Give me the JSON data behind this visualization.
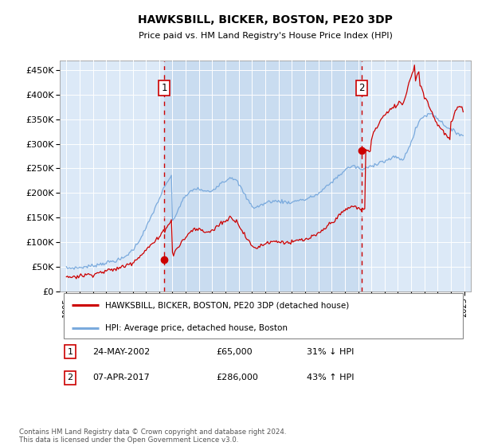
{
  "title": "HAWKSBILL, BICKER, BOSTON, PE20 3DP",
  "subtitle": "Price paid vs. HM Land Registry's House Price Index (HPI)",
  "plot_bg_color": "#dce9f7",
  "highlight_color": "#c8d8ef",
  "red_line_color": "#cc0000",
  "blue_line_color": "#7aaadd",
  "marker1_date_num": 2002.38,
  "marker2_date_num": 2017.27,
  "marker1_value": 65000,
  "marker2_value": 286000,
  "marker1_label": "1",
  "marker2_label": "2",
  "marker1_date_str": "24-MAY-2002",
  "marker2_date_str": "07-APR-2017",
  "marker1_pct": "31% ↓ HPI",
  "marker2_pct": "43% ↑ HPI",
  "ylim_min": 0,
  "ylim_max": 470000,
  "xlim_min": 1994.5,
  "xlim_max": 2025.5,
  "ytick_values": [
    0,
    50000,
    100000,
    150000,
    200000,
    250000,
    300000,
    350000,
    400000,
    450000
  ],
  "ytick_labels": [
    "£0",
    "£50K",
    "£100K",
    "£150K",
    "£200K",
    "£250K",
    "£300K",
    "£350K",
    "£400K",
    "£450K"
  ],
  "xtick_years": [
    1995,
    1996,
    1997,
    1998,
    1999,
    2000,
    2001,
    2002,
    2003,
    2004,
    2005,
    2006,
    2007,
    2008,
    2009,
    2010,
    2011,
    2012,
    2013,
    2014,
    2015,
    2016,
    2017,
    2018,
    2019,
    2020,
    2021,
    2022,
    2023,
    2024,
    2025
  ],
  "legend_red_label": "HAWKSBILL, BICKER, BOSTON, PE20 3DP (detached house)",
  "legend_blue_label": "HPI: Average price, detached house, Boston",
  "footer_text": "Contains HM Land Registry data © Crown copyright and database right 2024.\nThis data is licensed under the Open Government Licence v3.0.",
  "hpi_x": [
    1995.0,
    1995.08,
    1995.17,
    1995.25,
    1995.33,
    1995.42,
    1995.5,
    1995.58,
    1995.67,
    1995.75,
    1995.83,
    1995.92,
    1996.0,
    1996.08,
    1996.17,
    1996.25,
    1996.33,
    1996.42,
    1996.5,
    1996.58,
    1996.67,
    1996.75,
    1996.83,
    1996.92,
    1997.0,
    1997.08,
    1997.17,
    1997.25,
    1997.33,
    1997.42,
    1997.5,
    1997.58,
    1997.67,
    1997.75,
    1997.83,
    1997.92,
    1998.0,
    1998.08,
    1998.17,
    1998.25,
    1998.33,
    1998.42,
    1998.5,
    1998.58,
    1998.67,
    1998.75,
    1998.83,
    1998.92,
    1999.0,
    1999.08,
    1999.17,
    1999.25,
    1999.33,
    1999.42,
    1999.5,
    1999.58,
    1999.67,
    1999.75,
    1999.83,
    1999.92,
    2000.0,
    2000.08,
    2000.17,
    2000.25,
    2000.33,
    2000.42,
    2000.5,
    2000.58,
    2000.67,
    2000.75,
    2000.83,
    2000.92,
    2001.0,
    2001.08,
    2001.17,
    2001.25,
    2001.33,
    2001.42,
    2001.5,
    2001.58,
    2001.67,
    2001.75,
    2001.83,
    2001.92,
    2002.0,
    2002.08,
    2002.17,
    2002.25,
    2002.33,
    2002.42,
    2002.5,
    2002.58,
    2002.67,
    2002.75,
    2002.83,
    2002.92,
    2003.0,
    2003.08,
    2003.17,
    2003.25,
    2003.33,
    2003.42,
    2003.5,
    2003.58,
    2003.67,
    2003.75,
    2003.83,
    2003.92,
    2004.0,
    2004.08,
    2004.17,
    2004.25,
    2004.33,
    2004.42,
    2004.5,
    2004.58,
    2004.67,
    2004.75,
    2004.83,
    2004.92,
    2005.0,
    2005.08,
    2005.17,
    2005.25,
    2005.33,
    2005.42,
    2005.5,
    2005.58,
    2005.67,
    2005.75,
    2005.83,
    2005.92,
    2006.0,
    2006.08,
    2006.17,
    2006.25,
    2006.33,
    2006.42,
    2006.5,
    2006.58,
    2006.67,
    2006.75,
    2006.83,
    2006.92,
    2007.0,
    2007.08,
    2007.17,
    2007.25,
    2007.33,
    2007.42,
    2007.5,
    2007.58,
    2007.67,
    2007.75,
    2007.83,
    2007.92,
    2008.0,
    2008.08,
    2008.17,
    2008.25,
    2008.33,
    2008.42,
    2008.5,
    2008.58,
    2008.67,
    2008.75,
    2008.83,
    2008.92,
    2009.0,
    2009.08,
    2009.17,
    2009.25,
    2009.33,
    2009.42,
    2009.5,
    2009.58,
    2009.67,
    2009.75,
    2009.83,
    2009.92,
    2010.0,
    2010.08,
    2010.17,
    2010.25,
    2010.33,
    2010.42,
    2010.5,
    2010.58,
    2010.67,
    2010.75,
    2010.83,
    2010.92,
    2011.0,
    2011.08,
    2011.17,
    2011.25,
    2011.33,
    2011.42,
    2011.5,
    2011.58,
    2011.67,
    2011.75,
    2011.83,
    2011.92,
    2012.0,
    2012.08,
    2012.17,
    2012.25,
    2012.33,
    2012.42,
    2012.5,
    2012.58,
    2012.67,
    2012.75,
    2012.83,
    2012.92,
    2013.0,
    2013.08,
    2013.17,
    2013.25,
    2013.33,
    2013.42,
    2013.5,
    2013.58,
    2013.67,
    2013.75,
    2013.83,
    2013.92,
    2014.0,
    2014.08,
    2014.17,
    2014.25,
    2014.33,
    2014.42,
    2014.5,
    2014.58,
    2014.67,
    2014.75,
    2014.83,
    2014.92,
    2015.0,
    2015.08,
    2015.17,
    2015.25,
    2015.33,
    2015.42,
    2015.5,
    2015.58,
    2015.67,
    2015.75,
    2015.83,
    2015.92,
    2016.0,
    2016.08,
    2016.17,
    2016.25,
    2016.33,
    2016.42,
    2016.5,
    2016.58,
    2016.67,
    2016.75,
    2016.83,
    2016.92,
    2017.0,
    2017.08,
    2017.17,
    2017.25,
    2017.33,
    2017.42,
    2017.5,
    2017.58,
    2017.67,
    2017.75,
    2017.83,
    2017.92,
    2018.0,
    2018.08,
    2018.17,
    2018.25,
    2018.33,
    2018.42,
    2018.5,
    2018.58,
    2018.67,
    2018.75,
    2018.83,
    2018.92,
    2019.0,
    2019.08,
    2019.17,
    2019.25,
    2019.33,
    2019.42,
    2019.5,
    2019.58,
    2019.67,
    2019.75,
    2019.83,
    2019.92,
    2020.0,
    2020.08,
    2020.17,
    2020.25,
    2020.33,
    2020.42,
    2020.5,
    2020.58,
    2020.67,
    2020.75,
    2020.83,
    2020.92,
    2021.0,
    2021.08,
    2021.17,
    2021.25,
    2021.33,
    2021.42,
    2021.5,
    2021.58,
    2021.67,
    2021.75,
    2021.83,
    2021.92,
    2022.0,
    2022.08,
    2022.17,
    2022.25,
    2022.33,
    2022.42,
    2022.5,
    2022.58,
    2022.67,
    2022.75,
    2022.83,
    2022.92,
    2023.0,
    2023.08,
    2023.17,
    2023.25,
    2023.33,
    2023.42,
    2023.5,
    2023.58,
    2023.67,
    2023.75,
    2023.83,
    2023.92,
    2024.0,
    2024.08,
    2024.17,
    2024.25,
    2024.33,
    2024.42,
    2024.5,
    2024.58,
    2024.67,
    2024.75,
    2024.83,
    2024.92
  ],
  "hpi_y": [
    47000,
    47200,
    47100,
    47300,
    47500,
    47400,
    47600,
    47800,
    47700,
    47900,
    48000,
    47800,
    48200,
    48500,
    48800,
    49100,
    49400,
    49700,
    50000,
    50300,
    50600,
    50900,
    51200,
    51500,
    52000,
    52500,
    53000,
    53500,
    54000,
    54500,
    55000,
    55500,
    56000,
    56500,
    57000,
    57500,
    58000,
    58500,
    59000,
    59500,
    60000,
    60500,
    61000,
    61500,
    62000,
    62500,
    63000,
    63500,
    64000,
    65000,
    66000,
    67000,
    68000,
    70000,
    72000,
    74000,
    76000,
    78000,
    80000,
    82000,
    84000,
    87000,
    90000,
    93000,
    96000,
    100000,
    104000,
    108000,
    112000,
    116000,
    120000,
    124000,
    128000,
    133000,
    138000,
    143000,
    148000,
    153000,
    158000,
    163000,
    168000,
    173000,
    178000,
    183000,
    188000,
    193000,
    198000,
    203000,
    208000,
    212000,
    216000,
    220000,
    224000,
    228000,
    232000,
    236000,
    140000,
    145000,
    150000,
    155000,
    160000,
    165000,
    170000,
    175000,
    180000,
    185000,
    188000,
    190000,
    192000,
    195000,
    198000,
    200000,
    202000,
    204000,
    206000,
    207000,
    208000,
    208000,
    208000,
    208000,
    208000,
    207000,
    206000,
    205000,
    204000,
    203000,
    203000,
    203000,
    203000,
    203000,
    203000,
    204000,
    205000,
    207000,
    209000,
    211000,
    213000,
    215000,
    217000,
    219000,
    221000,
    222000,
    223000,
    224000,
    225000,
    226000,
    228000,
    230000,
    232000,
    232000,
    231000,
    230000,
    228000,
    226000,
    224000,
    221000,
    218000,
    214000,
    210000,
    206000,
    202000,
    198000,
    194000,
    190000,
    186000,
    183000,
    180000,
    177000,
    174000,
    172000,
    170000,
    170000,
    171000,
    172000,
    173000,
    174000,
    175000,
    176000,
    177000,
    178000,
    179000,
    180000,
    181000,
    182000,
    183000,
    183000,
    183000,
    183000,
    183000,
    183000,
    183000,
    183000,
    183000,
    183000,
    183000,
    183000,
    182000,
    182000,
    182000,
    181000,
    181000,
    181000,
    181000,
    181000,
    181000,
    181000,
    182000,
    183000,
    184000,
    185000,
    186000,
    186000,
    186000,
    186000,
    186000,
    186000,
    186000,
    187000,
    188000,
    189000,
    190000,
    191000,
    192000,
    193000,
    194000,
    195000,
    196000,
    197000,
    198000,
    200000,
    202000,
    204000,
    206000,
    208000,
    210000,
    212000,
    214000,
    216000,
    218000,
    220000,
    222000,
    224000,
    226000,
    228000,
    230000,
    232000,
    234000,
    236000,
    238000,
    240000,
    242000,
    244000,
    246000,
    248000,
    250000,
    251000,
    252000,
    253000,
    254000,
    254000,
    254000,
    254000,
    253000,
    252000,
    251000,
    250000,
    249000,
    248000,
    247000,
    248000,
    249000,
    250000,
    251000,
    252000,
    253000,
    254000,
    255000,
    256000,
    257000,
    258000,
    259000,
    260000,
    261000,
    262000,
    263000,
    264000,
    264000,
    264000,
    264000,
    265000,
    266000,
    267000,
    268000,
    269000,
    270000,
    271000,
    272000,
    272000,
    272000,
    272000,
    272000,
    271000,
    270000,
    269000,
    265000,
    268000,
    273000,
    278000,
    284000,
    290000,
    294000,
    298000,
    302000,
    308000,
    315000,
    322000,
    328000,
    334000,
    339000,
    344000,
    348000,
    351000,
    354000,
    356000,
    356000,
    357000,
    358000,
    359000,
    360000,
    361000,
    362000,
    361000,
    360000,
    358000,
    356000,
    354000,
    351000,
    349000,
    347000,
    345000,
    343000,
    341000,
    339000,
    337000,
    335000,
    333000,
    331000,
    329000,
    328000,
    327000,
    326000,
    325000,
    324000,
    323000,
    322000,
    321000,
    320000,
    319000,
    318000,
    318000
  ],
  "price_x": [
    1995.0,
    1995.08,
    1995.17,
    1995.25,
    1995.33,
    1995.42,
    1995.5,
    1995.58,
    1995.67,
    1995.75,
    1995.83,
    1995.92,
    1996.0,
    1996.08,
    1996.17,
    1996.25,
    1996.33,
    1996.42,
    1996.5,
    1996.58,
    1996.67,
    1996.75,
    1996.83,
    1996.92,
    1997.0,
    1997.08,
    1997.17,
    1997.25,
    1997.33,
    1997.42,
    1997.5,
    1997.58,
    1997.67,
    1997.75,
    1997.83,
    1997.92,
    1998.0,
    1998.08,
    1998.17,
    1998.25,
    1998.33,
    1998.42,
    1998.5,
    1998.58,
    1998.67,
    1998.75,
    1998.83,
    1998.92,
    1999.0,
    1999.08,
    1999.17,
    1999.25,
    1999.33,
    1999.42,
    1999.5,
    1999.58,
    1999.67,
    1999.75,
    1999.83,
    1999.92,
    2000.0,
    2000.08,
    2000.17,
    2000.25,
    2000.33,
    2000.42,
    2000.5,
    2000.58,
    2000.67,
    2000.75,
    2000.83,
    2000.92,
    2001.0,
    2001.08,
    2001.17,
    2001.25,
    2001.33,
    2001.42,
    2001.5,
    2001.58,
    2001.67,
    2001.75,
    2001.83,
    2001.92,
    2002.0,
    2002.08,
    2002.17,
    2002.25,
    2002.33,
    2002.42,
    2002.5,
    2002.58,
    2002.67,
    2002.75,
    2002.83,
    2002.92,
    2003.0,
    2003.08,
    2003.17,
    2003.25,
    2003.33,
    2003.42,
    2003.5,
    2003.58,
    2003.67,
    2003.75,
    2003.83,
    2003.92,
    2004.0,
    2004.08,
    2004.17,
    2004.25,
    2004.33,
    2004.42,
    2004.5,
    2004.58,
    2004.67,
    2004.75,
    2004.83,
    2004.92,
    2005.0,
    2005.08,
    2005.17,
    2005.25,
    2005.33,
    2005.42,
    2005.5,
    2005.58,
    2005.67,
    2005.75,
    2005.83,
    2005.92,
    2006.0,
    2006.08,
    2006.17,
    2006.25,
    2006.33,
    2006.42,
    2006.5,
    2006.58,
    2006.67,
    2006.75,
    2006.83,
    2006.92,
    2007.0,
    2007.08,
    2007.17,
    2007.25,
    2007.33,
    2007.42,
    2007.5,
    2007.58,
    2007.67,
    2007.75,
    2007.83,
    2007.92,
    2008.0,
    2008.08,
    2008.17,
    2008.25,
    2008.33,
    2008.42,
    2008.5,
    2008.58,
    2008.67,
    2008.75,
    2008.83,
    2008.92,
    2009.0,
    2009.08,
    2009.17,
    2009.25,
    2009.33,
    2009.42,
    2009.5,
    2009.58,
    2009.67,
    2009.75,
    2009.83,
    2009.92,
    2010.0,
    2010.08,
    2010.17,
    2010.25,
    2010.33,
    2010.42,
    2010.5,
    2010.58,
    2010.67,
    2010.75,
    2010.83,
    2010.92,
    2011.0,
    2011.08,
    2011.17,
    2011.25,
    2011.33,
    2011.42,
    2011.5,
    2011.58,
    2011.67,
    2011.75,
    2011.83,
    2011.92,
    2012.0,
    2012.08,
    2012.17,
    2012.25,
    2012.33,
    2012.42,
    2012.5,
    2012.58,
    2012.67,
    2012.75,
    2012.83,
    2012.92,
    2013.0,
    2013.08,
    2013.17,
    2013.25,
    2013.33,
    2013.42,
    2013.5,
    2013.58,
    2013.67,
    2013.75,
    2013.83,
    2013.92,
    2014.0,
    2014.08,
    2014.17,
    2014.25,
    2014.33,
    2014.42,
    2014.5,
    2014.58,
    2014.67,
    2014.75,
    2014.83,
    2014.92,
    2015.0,
    2015.08,
    2015.17,
    2015.25,
    2015.33,
    2015.42,
    2015.5,
    2015.58,
    2015.67,
    2015.75,
    2015.83,
    2015.92,
    2016.0,
    2016.08,
    2016.17,
    2016.25,
    2016.33,
    2016.42,
    2016.5,
    2016.58,
    2016.67,
    2016.75,
    2016.83,
    2016.92,
    2017.0,
    2017.08,
    2017.17,
    2017.25,
    2017.27,
    2017.33,
    2017.42,
    2017.5,
    2017.58,
    2017.67,
    2017.75,
    2017.83,
    2017.92,
    2018.0,
    2018.08,
    2018.17,
    2018.25,
    2018.33,
    2018.42,
    2018.5,
    2018.58,
    2018.67,
    2018.75,
    2018.83,
    2018.92,
    2019.0,
    2019.08,
    2019.17,
    2019.25,
    2019.33,
    2019.42,
    2019.5,
    2019.58,
    2019.67,
    2019.75,
    2019.83,
    2019.92,
    2020.0,
    2020.08,
    2020.17,
    2020.25,
    2020.33,
    2020.42,
    2020.5,
    2020.58,
    2020.67,
    2020.75,
    2020.83,
    2020.92,
    2021.0,
    2021.08,
    2021.17,
    2021.25,
    2021.33,
    2021.42,
    2021.5,
    2021.58,
    2021.67,
    2021.75,
    2021.83,
    2021.92,
    2022.0,
    2022.08,
    2022.17,
    2022.25,
    2022.33,
    2022.42,
    2022.5,
    2022.58,
    2022.67,
    2022.75,
    2022.83,
    2022.92,
    2023.0,
    2023.08,
    2023.17,
    2023.25,
    2023.33,
    2023.42,
    2023.5,
    2023.58,
    2023.67,
    2023.75,
    2023.83,
    2023.92,
    2024.0,
    2024.08,
    2024.17,
    2024.25,
    2024.33,
    2024.42,
    2024.5,
    2024.58,
    2024.67,
    2024.75,
    2024.83,
    2024.92
  ],
  "price_y": [
    28000,
    28500,
    29000,
    29200,
    29400,
    29600,
    29800,
    30000,
    30200,
    30400,
    30600,
    30800,
    31000,
    31500,
    32000,
    32300,
    32600,
    32900,
    33200,
    33500,
    33800,
    34100,
    34400,
    34700,
    35000,
    35500,
    36000,
    36500,
    37000,
    37500,
    38000,
    38500,
    39000,
    39500,
    40000,
    40500,
    41000,
    41500,
    42000,
    42500,
    43000,
    43500,
    44000,
    44500,
    45000,
    45500,
    46000,
    46500,
    47000,
    48000,
    49000,
    50000,
    51000,
    52000,
    53000,
    54000,
    55000,
    56000,
    57000,
    58000,
    59000,
    61000,
    63000,
    65000,
    67000,
    69000,
    71000,
    73000,
    75000,
    77000,
    79000,
    81000,
    83000,
    86000,
    89000,
    91000,
    93000,
    95000,
    97000,
    99000,
    101000,
    103000,
    105000,
    107000,
    109000,
    113000,
    117000,
    120000,
    123000,
    126000,
    129000,
    132000,
    135000,
    138000,
    141000,
    144000,
    75000,
    78000,
    81000,
    84000,
    87000,
    90000,
    93000,
    96000,
    99000,
    102000,
    105000,
    107000,
    109000,
    112000,
    115000,
    118000,
    121000,
    123000,
    124000,
    125000,
    126000,
    126000,
    126000,
    126000,
    126000,
    125000,
    124000,
    123000,
    122000,
    121000,
    121000,
    121000,
    121000,
    121000,
    121000,
    122000,
    123000,
    125000,
    127000,
    129000,
    131000,
    133000,
    135000,
    137000,
    139000,
    140000,
    141000,
    142000,
    143000,
    144000,
    146000,
    148000,
    150000,
    150000,
    149000,
    148000,
    146000,
    144000,
    142000,
    139000,
    136000,
    132000,
    128000,
    124000,
    120000,
    116000,
    112000,
    108000,
    104000,
    101000,
    98000,
    95000,
    92000,
    90000,
    88000,
    88000,
    89000,
    90000,
    91000,
    92000,
    93000,
    94000,
    95000,
    96000,
    97000,
    98000,
    99000,
    100000,
    101000,
    101000,
    101000,
    101000,
    101000,
    101000,
    101000,
    101000,
    101000,
    101000,
    101000,
    101000,
    100000,
    100000,
    100000,
    99000,
    99000,
    99000,
    99000,
    99000,
    99000,
    99000,
    100000,
    101000,
    102000,
    103000,
    104000,
    104000,
    104000,
    104000,
    104000,
    104000,
    104000,
    105000,
    106000,
    107000,
    108000,
    109000,
    110000,
    111000,
    112000,
    113000,
    114000,
    115000,
    116000,
    118000,
    120000,
    122000,
    124000,
    126000,
    128000,
    130000,
    132000,
    134000,
    136000,
    138000,
    140000,
    142000,
    144000,
    146000,
    148000,
    150000,
    152000,
    154000,
    156000,
    158000,
    160000,
    162000,
    164000,
    166000,
    168000,
    169000,
    170000,
    171000,
    172000,
    172000,
    172000,
    172000,
    171000,
    170000,
    169000,
    168000,
    167000,
    166000,
    165000,
    166000,
    167000,
    168000,
    286000,
    286000,
    286000,
    286000,
    286000,
    310000,
    316000,
    322000,
    326000,
    330000,
    334000,
    338000,
    342000,
    346000,
    350000,
    353000,
    356000,
    358000,
    360000,
    362000,
    364000,
    366000,
    368000,
    370000,
    372000,
    374000,
    376000,
    378000,
    380000,
    382000,
    383000,
    384000,
    383000,
    382000,
    383000,
    390000,
    398000,
    408000,
    418000,
    424000,
    430000,
    436000,
    444000,
    452000,
    460000,
    430000,
    438000,
    442000,
    448000,
    420000,
    415000,
    410000,
    405000,
    398000,
    393000,
    388000,
    383000,
    378000,
    373000,
    368000,
    363000,
    358000,
    353000,
    348000,
    343000,
    340000,
    337000,
    334000,
    331000,
    328000,
    325000,
    322000,
    319000,
    316000,
    313000,
    310000,
    308000,
    342000,
    347000,
    353000,
    358000,
    363000,
    368000,
    373000,
    376000,
    379000,
    375000,
    372000,
    369000
  ]
}
